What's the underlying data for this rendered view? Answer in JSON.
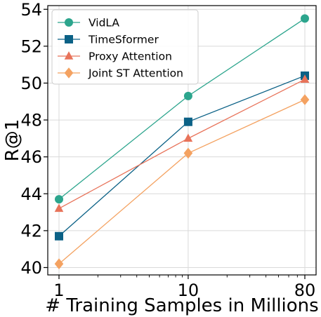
{
  "chart_data": {
    "type": "line",
    "xscale": "log",
    "x": [
      1,
      10,
      80
    ],
    "xticks": [
      "1",
      "10",
      "80"
    ],
    "xlabel": "# Training Samples in Millions",
    "ylabel": "R@1",
    "ylim": [
      39.6,
      54.2
    ],
    "yticks": [
      "40",
      "42",
      "44",
      "46",
      "48",
      "50",
      "52",
      "54"
    ],
    "grid": true,
    "legend_position": "top-left",
    "series": [
      {
        "name": "VidLA",
        "values": [
          43.7,
          49.3,
          53.5
        ],
        "color": "#2ca58d",
        "marker": "circle"
      },
      {
        "name": "TimeSformer",
        "values": [
          41.7,
          47.9,
          50.4
        ],
        "color": "#0b6186",
        "marker": "square"
      },
      {
        "name": "Proxy Attention",
        "values": [
          43.2,
          47.0,
          50.2
        ],
        "color": "#e8735a",
        "marker": "triangle"
      },
      {
        "name": "Joint ST Attention",
        "values": [
          40.2,
          46.2,
          49.1
        ],
        "color": "#f4a261",
        "marker": "diamond"
      }
    ]
  }
}
